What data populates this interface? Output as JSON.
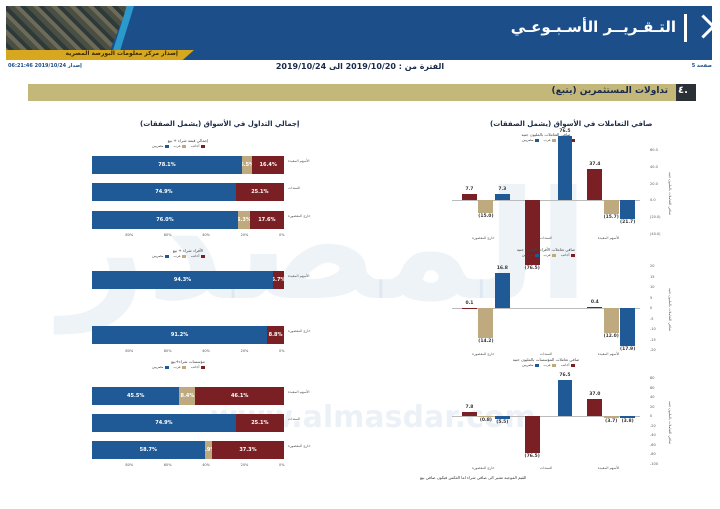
{
  "header": {
    "title": "التـقـريــر الأسـبـوعـي",
    "subtitle": "إصدار مركز معلومات البورصة المصرية",
    "page_label": "صفحة 5",
    "issued_label": "إصدار 2019/10/24 06:21:46",
    "period": "الفترة من : 2019/10/20 الى 2019/10/24"
  },
  "section": {
    "number": "٤.",
    "title": "تداولات المستثمرين  (يتبع)"
  },
  "columns": {
    "right": "صافي التعاملات في الأسواق (يشمل الصفقات)",
    "left": "إجمالي التداول في الأسواق (يشمل الصفقات)"
  },
  "colors": {
    "blue": "#1f5a96",
    "tan": "#bfa97e",
    "maroon": "#7a1f24",
    "header": "#1c4f8a",
    "gold": "#d7a81f"
  },
  "legend": [
    "مصريين",
    "عرب",
    "أجانب"
  ],
  "net_charts": [
    {
      "title": "صافي التعاملات بالمليون جنيه",
      "ylim": [
        -40,
        60
      ],
      "ticks": [
        60,
        40,
        20,
        0,
        -20,
        -40
      ],
      "ticklabels": [
        "60.0",
        "40.0",
        "20.0",
        "0.0",
        "(20.0)",
        "(40.0)"
      ],
      "ylabel": "صافي التعاملات بالمليون جنيه",
      "groups": [
        {
          "name": "الأسهم المقيدة",
          "values": [
            -21.7,
            -15.7,
            37.4
          ],
          "labels": [
            "(21.7)",
            "(15.7)",
            "37.4"
          ]
        },
        {
          "name": "السندات",
          "values": [
            76.5,
            0.0,
            -76.5
          ],
          "labels": [
            "76.5",
            "",
            "(76.5)"
          ]
        },
        {
          "name": "خارج المقصورة",
          "values": [
            7.3,
            -15.0,
            7.7
          ],
          "labels": [
            "7.3",
            "(15.0)",
            "7.7"
          ]
        }
      ]
    },
    {
      "title": "صافي تعاملات الأفراد بالمليون جنيه",
      "ylim": [
        -20,
        20
      ],
      "ticks": [
        20,
        15,
        10,
        5,
        0,
        -5,
        -10,
        -15,
        -20
      ],
      "ticklabels": [
        "20",
        "15",
        "10",
        "5",
        "0",
        "-5",
        "-10",
        "-15",
        "-20"
      ],
      "ylabel": "صافي التعاملات بالمليون جنيه",
      "groups": [
        {
          "name": "الأسهم المقيدة",
          "values": [
            -17.9,
            -12.0,
            0.4
          ],
          "labels": [
            "(17.9)",
            "(12.0)",
            "0.4"
          ]
        },
        {
          "name": "السندات",
          "values": [
            0,
            0,
            0
          ],
          "labels": [
            "",
            "",
            ""
          ]
        },
        {
          "name": "خارج المقصورة",
          "values": [
            16.8,
            -14.2,
            0.1
          ],
          "labels": [
            "16.8",
            "(14.2)",
            "0.1"
          ]
        }
      ]
    },
    {
      "title": "صافي تعاملات المؤسسات بالمليون جنيه",
      "ylim": [
        -100,
        80
      ],
      "ticks": [
        80,
        60,
        40,
        20,
        0,
        -20,
        -40,
        -60,
        -80,
        -100
      ],
      "ticklabels": [
        "80",
        "60",
        "40",
        "20",
        "0",
        "-20",
        "-40",
        "-60",
        "-80",
        "-100"
      ],
      "ylabel": "صافي التعاملات بالمليون جنيه",
      "groups": [
        {
          "name": "الأسهم المقيدة",
          "values": [
            -3.8,
            -3.7,
            37.0
          ],
          "labels": [
            "(3.8)",
            "(3.7)",
            "37.0"
          ]
        },
        {
          "name": "السندات",
          "values": [
            76.5,
            0.0,
            -76.5
          ],
          "labels": [
            "76.5",
            "",
            "(76.5)"
          ]
        },
        {
          "name": "خارج المقصورة",
          "values": [
            -5.5,
            -0.8,
            7.8
          ],
          "labels": [
            "(5.5)",
            "(0.8)",
            "7.8"
          ]
        }
      ]
    }
  ],
  "share_charts": [
    {
      "title": "إجمالي قيمة شراء + بيع",
      "rows": [
        {
          "name": "الأسهم المقيدة",
          "values": [
            78.1,
            5.5,
            16.4
          ],
          "labels": [
            "78.1%",
            "5.5%",
            "16.4%"
          ]
        },
        {
          "name": "السندات",
          "values": [
            74.9,
            0.0,
            25.1
          ],
          "labels": [
            "74.9%",
            "",
            "25.1%"
          ]
        },
        {
          "name": "خارج المقصورة",
          "values": [
            76.0,
            6.3,
            17.6
          ],
          "labels": [
            "76.0%",
            "6.3%",
            "17.6%"
          ]
        }
      ]
    },
    {
      "title": "الأفراد شراء + بيع",
      "rows": [
        {
          "name": "الأسهم المقيدة",
          "values": [
            94.3,
            0.0,
            5.7
          ],
          "labels": [
            "94.3%",
            "",
            "5.7%"
          ]
        },
        {
          "name": "خارج المقصورة",
          "values": [
            91.2,
            0.0,
            8.8
          ],
          "labels": [
            "91.2%",
            "",
            "8.8%"
          ]
        }
      ]
    },
    {
      "title": "مؤسسات شراء+بيع",
      "rows": [
        {
          "name": "الأسهم المقيدة",
          "values": [
            45.5,
            8.4,
            46.1
          ],
          "labels": [
            "45.5%",
            "8.4%",
            "46.1%"
          ]
        },
        {
          "name": "السندات",
          "values": [
            74.9,
            0.0,
            25.1
          ],
          "labels": [
            "74.9%",
            "",
            "25.1%"
          ]
        },
        {
          "name": "خارج المقصورة",
          "values": [
            58.7,
            3.9,
            37.3
          ],
          "labels": [
            "58.7%",
            "3.9%",
            "37.3%"
          ]
        }
      ]
    }
  ],
  "share_ticks": [
    "0%",
    "20%",
    "40%",
    "60%",
    "80%"
  ],
  "footnote": "القيم الموجبة تشير الى صافي شراء اما العكس فيكون صافي بيع",
  "watermark": "المصدر",
  "watermark_url": "www.almasdar.com"
}
